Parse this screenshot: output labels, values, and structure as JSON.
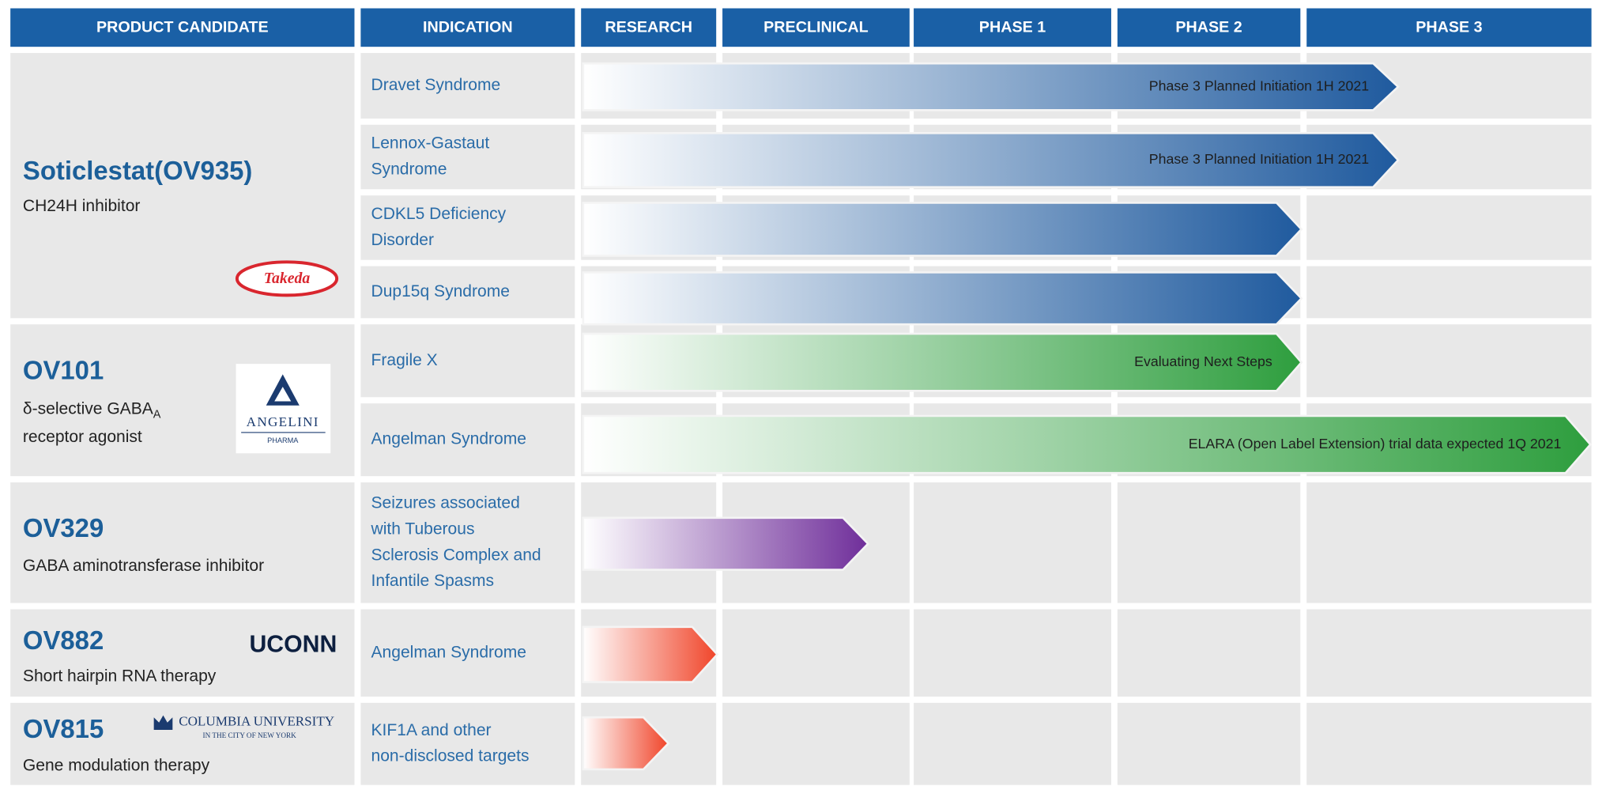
{
  "header": [
    "PRODUCT CANDIDATE",
    "INDICATION",
    "RESEARCH",
    "PRECLINICAL",
    "PHASE 1",
    "PHASE 2",
    "PHASE 3"
  ],
  "candidates": [
    {
      "name": "Soticlestat(OV935)",
      "description": [
        "CH24H inhibitor"
      ],
      "partner": [
        "Takeda"
      ],
      "indications": [
        {
          "lines": [
            "Dravet Syndrome"
          ],
          "status": "Phase 3 Planned Initiation 1H 2021"
        },
        {
          "lines": [
            "Lennox-Gastaut",
            "Syndrome"
          ],
          "status": "Phase 3 Planned Initiation 1H 2021"
        },
        {
          "lines": [
            "CDKL5 Deficiency",
            "Disorder"
          ]
        },
        {
          "lines": [
            "Dup15q Syndrome"
          ]
        }
      ]
    },
    {
      "name": "OV101",
      "description": [
        "δ-selective GABA",
        "receptor agonist"
      ],
      "description_subscript": "A",
      "partner": [
        "ANGELINI",
        "PHARMA"
      ],
      "indications": [
        {
          "lines": [
            "Fragile X"
          ],
          "status": "Evaluating Next Steps"
        },
        {
          "lines": [
            "Angelman Syndrome"
          ],
          "status": "ELARA (Open Label Extension) trial data expected 1Q 2021"
        }
      ]
    },
    {
      "name": "OV329",
      "description": [
        "GABA aminotransferase inhibitor"
      ],
      "indications": [
        {
          "lines": [
            "Seizures associated",
            "with Tuberous",
            "Sclerosis Complex and",
            "Infantile Spasms"
          ]
        }
      ]
    },
    {
      "name": "OV882",
      "description": [
        "Short  hairpin RNA therapy"
      ],
      "partner": [
        "UCONN"
      ],
      "indications": [
        {
          "lines": [
            "Angelman Syndrome"
          ]
        }
      ]
    },
    {
      "name": "OV815",
      "description": [
        "Gene modulation therapy"
      ],
      "partner": [
        "COLUMBIA UNIVERSITY",
        "IN THE CITY OF NEW YORK"
      ],
      "indications": [
        {
          "lines": [
            "KIF1A and other",
            "non-disclosed targets"
          ]
        }
      ]
    }
  ]
}
